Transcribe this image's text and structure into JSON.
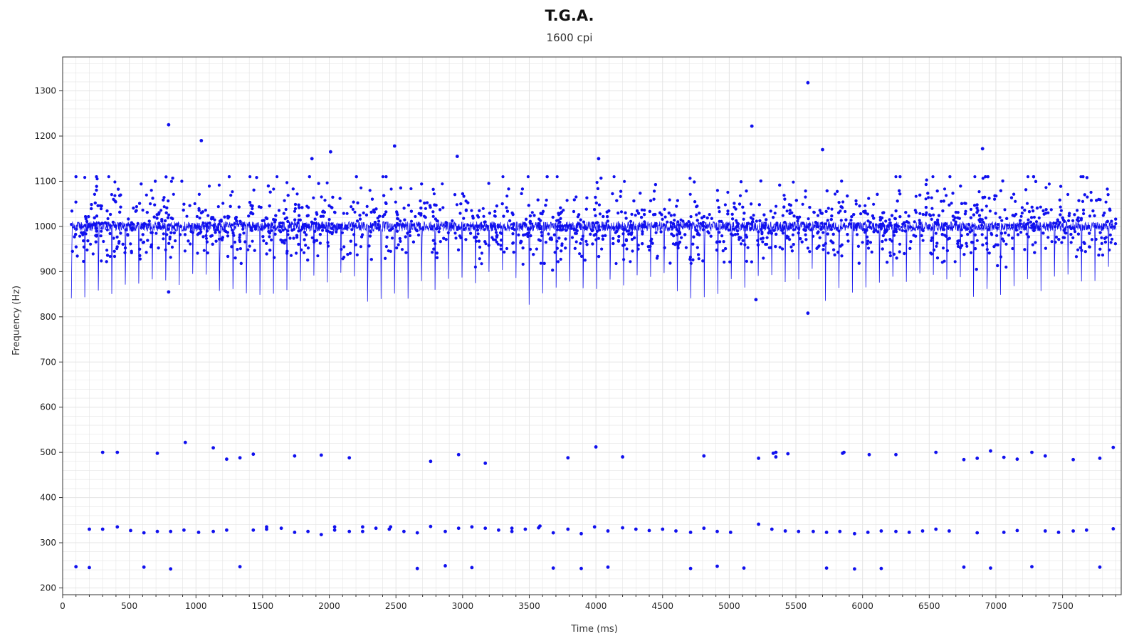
{
  "chart_data": {
    "type": "scatter",
    "title": "T.G.A.",
    "subtitle": "1600 cpi",
    "xlabel": "Time (ms)",
    "ylabel": "Frequency (Hz)",
    "xlim": [
      0,
      7940
    ],
    "ylim": [
      185,
      1375
    ],
    "xticks": [
      0,
      500,
      1000,
      1500,
      2000,
      2500,
      3000,
      3500,
      4000,
      4500,
      5000,
      5500,
      6000,
      6500,
      7000,
      7500
    ],
    "yticks": [
      200,
      300,
      400,
      500,
      600,
      700,
      800,
      900,
      1000,
      1100,
      1200,
      1300
    ],
    "grid": true,
    "legend": "none",
    "colors": {
      "series": "#1010ee",
      "grid": "#e4e4e4",
      "axis": "#333333"
    },
    "series": [
      {
        "type": "line",
        "style": "periodic report-rate trace near 1000 Hz with downward spikes",
        "base": 1000,
        "spike_period_ms": 101,
        "spike_min_range": [
          820,
          862
        ]
      },
      {
        "type": "scatter",
        "style": "dots",
        "cluster_main": {
          "center": 1000,
          "spread": 60,
          "outliers": [
            [
              795,
              1225
            ],
            [
              1040,
              1190
            ],
            [
              1870,
              1150
            ],
            [
              2010,
              1165
            ],
            [
              2490,
              1178
            ],
            [
              2960,
              1155
            ],
            [
              4020,
              1150
            ],
            [
              5170,
              1222
            ],
            [
              5590,
              1318
            ],
            [
              5700,
              1170
            ],
            [
              6900,
              1172
            ],
            [
              5590,
              808
            ],
            [
              5200,
              838
            ],
            [
              795,
              855
            ]
          ]
        },
        "band_500": [
          [
            300,
            500
          ],
          [
            410,
            500
          ],
          [
            710,
            498
          ],
          [
            920,
            522
          ],
          [
            1130,
            510
          ],
          [
            1230,
            485
          ],
          [
            1330,
            488
          ],
          [
            1430,
            496
          ],
          [
            1740,
            492
          ],
          [
            1940,
            494
          ],
          [
            2150,
            488
          ],
          [
            2760,
            480
          ],
          [
            2970,
            495
          ],
          [
            3170,
            476
          ],
          [
            3790,
            488
          ],
          [
            4000,
            512
          ],
          [
            4200,
            490
          ],
          [
            4810,
            492
          ],
          [
            5220,
            487
          ],
          [
            5330,
            498
          ],
          [
            5350,
            500
          ],
          [
            5350,
            490
          ],
          [
            5440,
            497
          ],
          [
            5850,
            498
          ],
          [
            5860,
            500
          ],
          [
            6050,
            495
          ],
          [
            6250,
            495
          ],
          [
            6550,
            500
          ],
          [
            6760,
            484
          ],
          [
            6860,
            487
          ],
          [
            6960,
            503
          ],
          [
            7060,
            489
          ],
          [
            7160,
            485
          ],
          [
            7270,
            500
          ],
          [
            7370,
            492
          ],
          [
            7580,
            484
          ],
          [
            7780,
            487
          ],
          [
            7880,
            511
          ]
        ],
        "band_330": [
          [
            200,
            330
          ],
          [
            300,
            330
          ],
          [
            410,
            335
          ],
          [
            510,
            327
          ],
          [
            610,
            322
          ],
          [
            710,
            325
          ],
          [
            810,
            325
          ],
          [
            910,
            328
          ],
          [
            1020,
            323
          ],
          [
            1130,
            325
          ],
          [
            1230,
            328
          ],
          [
            1430,
            328
          ],
          [
            1530,
            330
          ],
          [
            1530,
            335
          ],
          [
            1640,
            332
          ],
          [
            1740,
            323
          ],
          [
            1840,
            325
          ],
          [
            1940,
            318
          ],
          [
            2040,
            328
          ],
          [
            2040,
            335
          ],
          [
            2150,
            325
          ],
          [
            2250,
            325
          ],
          [
            2250,
            335
          ],
          [
            2350,
            332
          ],
          [
            2450,
            330
          ],
          [
            2460,
            335
          ],
          [
            2560,
            325
          ],
          [
            2660,
            322
          ],
          [
            2760,
            336
          ],
          [
            2870,
            325
          ],
          [
            2970,
            332
          ],
          [
            3070,
            335
          ],
          [
            3170,
            332
          ],
          [
            3270,
            328
          ],
          [
            3370,
            325
          ],
          [
            3370,
            332
          ],
          [
            3470,
            330
          ],
          [
            3570,
            333
          ],
          [
            3580,
            337
          ],
          [
            3680,
            322
          ],
          [
            3790,
            330
          ],
          [
            3890,
            320
          ],
          [
            3990,
            335
          ],
          [
            4090,
            326
          ],
          [
            4200,
            333
          ],
          [
            4300,
            330
          ],
          [
            4400,
            327
          ],
          [
            4500,
            330
          ],
          [
            4600,
            326
          ],
          [
            4710,
            323
          ],
          [
            4810,
            332
          ],
          [
            4910,
            325
          ],
          [
            5010,
            323
          ],
          [
            5220,
            341
          ],
          [
            5320,
            330
          ],
          [
            5420,
            326
          ],
          [
            5520,
            325
          ],
          [
            5630,
            325
          ],
          [
            5730,
            323
          ],
          [
            5830,
            325
          ],
          [
            5940,
            320
          ],
          [
            6040,
            323
          ],
          [
            6140,
            326
          ],
          [
            6250,
            325
          ],
          [
            6350,
            323
          ],
          [
            6450,
            326
          ],
          [
            6550,
            330
          ],
          [
            6650,
            326
          ],
          [
            6860,
            322
          ],
          [
            7060,
            323
          ],
          [
            7160,
            327
          ],
          [
            7370,
            326
          ],
          [
            7470,
            323
          ],
          [
            7580,
            326
          ],
          [
            7680,
            328
          ],
          [
            7880,
            331
          ]
        ],
        "band_245": [
          [
            100,
            247
          ],
          [
            200,
            245
          ],
          [
            610,
            246
          ],
          [
            810,
            242
          ],
          [
            1330,
            247
          ],
          [
            2660,
            243
          ],
          [
            2870,
            249
          ],
          [
            3070,
            245
          ],
          [
            3680,
            244
          ],
          [
            3890,
            243
          ],
          [
            4090,
            246
          ],
          [
            4710,
            243
          ],
          [
            4910,
            248
          ],
          [
            5110,
            244
          ],
          [
            5730,
            244
          ],
          [
            5940,
            242
          ],
          [
            6140,
            243
          ],
          [
            6760,
            246
          ],
          [
            6960,
            244
          ],
          [
            7270,
            247
          ],
          [
            7780,
            246
          ]
        ]
      }
    ]
  }
}
